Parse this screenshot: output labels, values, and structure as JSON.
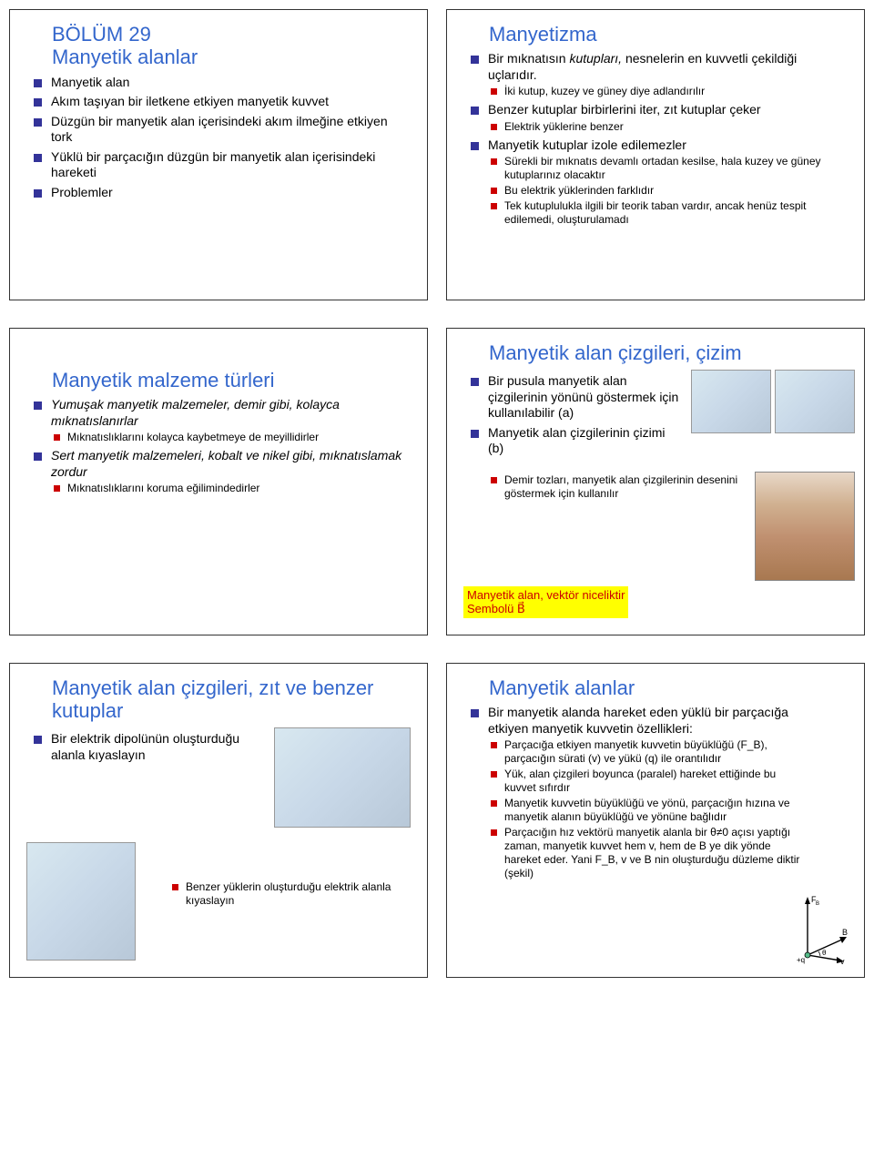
{
  "slide1": {
    "title": "BÖLÜM 29\nManyetik alanlar",
    "items": [
      {
        "lvl": 1,
        "text": "Manyetik alan"
      },
      {
        "lvl": 1,
        "text": "Akım taşıyan bir iletkene etkiyen manyetik kuvvet"
      },
      {
        "lvl": 1,
        "text": "Düzgün bir manyetik alan içerisindeki akım ilmeğine etkiyen tork"
      },
      {
        "lvl": 1,
        "text": "Yüklü bir parçacığın düzgün bir manyetik alan içerisindeki hareketi"
      },
      {
        "lvl": 1,
        "text": "Problemler"
      }
    ]
  },
  "slide2": {
    "title": "Manyetizma",
    "items": [
      {
        "lvl": 1,
        "text": "Bir mıknatısın kutupları, nesnelerin en kuvvetli çekildiği uçlarıdır.",
        "italic_words": "kutupları,"
      },
      {
        "lvl": 2,
        "text": "İki kutup, kuzey ve güney diye adlandırılır"
      },
      {
        "lvl": 1,
        "text": "Benzer kutuplar birbirlerini iter, zıt kutuplar çeker"
      },
      {
        "lvl": 2,
        "text": "Elektrik yüklerine benzer"
      },
      {
        "lvl": 1,
        "text": "Manyetik kutuplar izole edilemezler"
      },
      {
        "lvl": 2,
        "text": "Sürekli bir mıknatıs devamlı ortadan kesilse, hala kuzey ve güney kutuplarınız olacaktır"
      },
      {
        "lvl": 2,
        "text": "Bu elektrik yüklerinden farklıdır"
      },
      {
        "lvl": 2,
        "text": "Tek kutuplulukla ilgili bir teorik taban vardır, ancak henüz tespit edilemedi, oluşturulamadı"
      }
    ]
  },
  "slide3": {
    "title": "Manyetik malzeme türleri",
    "items": [
      {
        "lvl": 1,
        "text": "Yumuşak manyetik malzemeler, demir gibi, kolayca mıknatıslanırlar",
        "italic": true
      },
      {
        "lvl": 2,
        "text": "Mıknatıslıklarını kolayca kaybetmeye de meyillidirler"
      },
      {
        "lvl": 1,
        "text": "Sert manyetik malzemeleri, kobalt ve nikel gibi, mıknatıslamak zordur",
        "italic": true
      },
      {
        "lvl": 2,
        "text": "Mıknatıslıklarını koruma eğilimindedirler"
      }
    ]
  },
  "slide4": {
    "title": "Manyetik alan çizgileri, çizim",
    "items": [
      {
        "lvl": 1,
        "text": "Bir pusula manyetik alan çizgilerinin yönünü göstermek için kullanılabilir (a)"
      },
      {
        "lvl": 1,
        "text": "Manyetik alan çizgilerinin çizimi (b)"
      },
      {
        "lvl": 2,
        "text": "Demir tozları, manyetik alan çizgilerinin desenini göstermek için kullanılır"
      }
    ],
    "highlight1": "Manyetik alan, vektör niceliktir",
    "highlight2": "Sembolü B"
  },
  "slide5": {
    "title": "Manyetik alan çizgileri, zıt ve benzer kutuplar",
    "items": [
      {
        "lvl": 1,
        "text": "Bir elektrik dipolünün oluşturduğu alanla kıyaslayın"
      },
      {
        "lvl": 2,
        "text": "Benzer yüklerin oluşturduğu elektrik alanla kıyaslayın"
      }
    ]
  },
  "slide6": {
    "title": "Manyetik alanlar",
    "items": [
      {
        "lvl": 1,
        "text": "Bir manyetik alanda hareket eden yüklü bir parçacığa etkiyen manyetik kuvvetin özellikleri:"
      },
      {
        "lvl": 2,
        "text": "Parçacığa etkiyen manyetik kuvvetin büyüklüğü (F_B), parçacığın sürati (v) ve yükü (q) ile orantılıdır"
      },
      {
        "lvl": 2,
        "text": "Yük, alan çizgileri boyunca (paralel) hareket ettiğinde bu kuvvet sıfırdır"
      },
      {
        "lvl": 2,
        "text": "Manyetik kuvvetin büyüklüğü ve yönü, parçacığın hızına ve manyetik alanın büyüklüğü ve yönüne bağlıdır"
      },
      {
        "lvl": 2,
        "text": "Parçacığın hız vektörü manyetik alanla bir θ≠0 açısı yaptığı zaman, manyetik kuvvet hem v, hem de B ye dik yönde hareket eder. Yani F_B, v ve B nin oluşturduğu düzleme diktir (şekil)"
      }
    ],
    "diag": {
      "fb": "F_B",
      "b": "B",
      "v": "v",
      "q": "+q",
      "theta": "θ"
    }
  },
  "colors": {
    "title_blue": "#3366cc",
    "bullet_navy": "#333399",
    "bullet_red": "#cc0000",
    "highlight_bg": "#ffff00",
    "highlight_text": "#cc0000"
  }
}
